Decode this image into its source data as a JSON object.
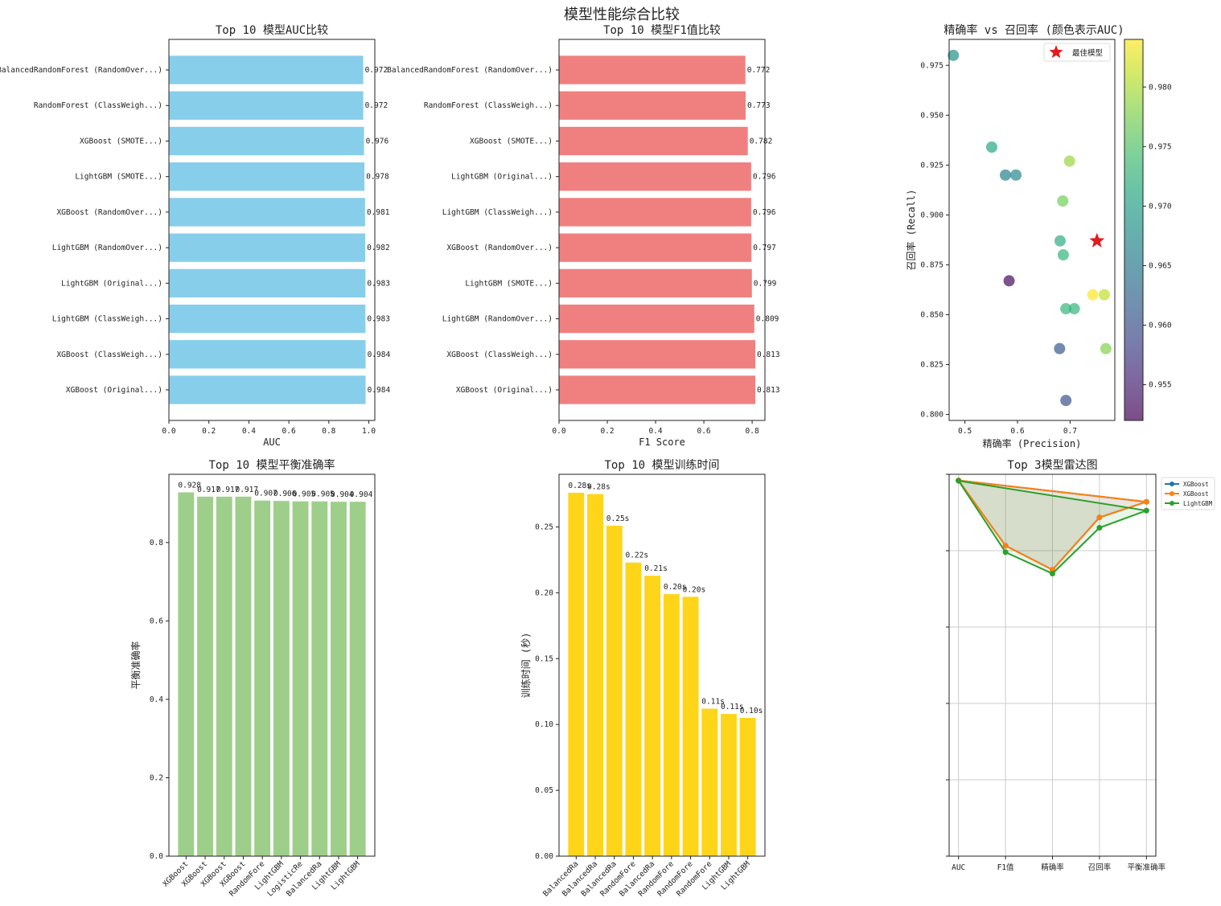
{
  "figure_title": "模型性能综合比较",
  "chart_data": [
    {
      "type": "bar",
      "orientation": "horizontal",
      "title": "Top 10 模型AUC比较",
      "xlabel": "AUC",
      "xlim": [
        0,
        1.03
      ],
      "xticks": [
        "0.0",
        "0.2",
        "0.4",
        "0.6",
        "0.8",
        "1.0"
      ],
      "color": "#87ceeb",
      "categories": [
        "BalancedRandomForest (RandomOver...)",
        "RandomForest (ClassWeigh...)",
        "XGBoost (SMOTE...)",
        "LightGBM (SMOTE...)",
        "XGBoost (RandomOver...)",
        "LightGBM (RandomOver...)",
        "LightGBM (Original...)",
        "LightGBM (ClassWeigh...)",
        "XGBoost (ClassWeigh...)",
        "XGBoost (Original...)"
      ],
      "values": [
        0.972,
        0.972,
        0.976,
        0.978,
        0.981,
        0.982,
        0.983,
        0.983,
        0.984,
        0.984
      ],
      "labels": [
        "0.972",
        "0.972",
        "0.976",
        "0.978",
        "0.981",
        "0.982",
        "0.983",
        "0.983",
        "0.984",
        "0.984"
      ]
    },
    {
      "type": "bar",
      "orientation": "horizontal",
      "title": "Top 10 模型F1值比较",
      "xlabel": "F1 Score",
      "xlim": [
        0,
        0.853
      ],
      "xticks": [
        "0.0",
        "0.2",
        "0.4",
        "0.6",
        "0.8"
      ],
      "color": "#f08080",
      "categories": [
        "BalancedRandomForest (RandomOver...)",
        "RandomForest (ClassWeigh...)",
        "XGBoost (SMOTE...)",
        "LightGBM (Original...)",
        "LightGBM (ClassWeigh...)",
        "XGBoost (RandomOver...)",
        "LightGBM (SMOTE...)",
        "LightGBM (RandomOver...)",
        "XGBoost (ClassWeigh...)",
        "XGBoost (Original...)"
      ],
      "values": [
        0.772,
        0.773,
        0.782,
        0.796,
        0.796,
        0.797,
        0.799,
        0.809,
        0.813,
        0.813
      ],
      "labels": [
        "0.772",
        "0.773",
        "0.782",
        "0.796",
        "0.796",
        "0.797",
        "0.799",
        "0.809",
        "0.813",
        "0.813"
      ]
    },
    {
      "type": "scatter",
      "title": "精确率 vs 召回率 (颜色表示AUC)",
      "xlabel": "精确率 (Precision)",
      "ylabel": "召回率 (Recall)",
      "xlim": [
        0.47,
        0.785
      ],
      "ylim": [
        0.797,
        0.988
      ],
      "xticks": [
        "0.5",
        "0.6",
        "0.7"
      ],
      "yticks": [
        "0.800",
        "0.825",
        "0.850",
        "0.875",
        "0.900",
        "0.925",
        "0.950",
        "0.975"
      ],
      "colormap": "viridis",
      "colorbar": {
        "range": [
          0.952,
          0.984
        ],
        "ticks": [
          "0.955",
          "0.960",
          "0.965",
          "0.970",
          "0.975",
          "0.980"
        ]
      },
      "points": [
        {
          "precision": 0.478,
          "recall": 0.98,
          "auc": 0.968
        },
        {
          "precision": 0.551,
          "recall": 0.934,
          "auc": 0.971
        },
        {
          "precision": 0.577,
          "recall": 0.92,
          "auc": 0.966
        },
        {
          "precision": 0.597,
          "recall": 0.92,
          "auc": 0.967
        },
        {
          "precision": 0.699,
          "recall": 0.927,
          "auc": 0.979
        },
        {
          "precision": 0.686,
          "recall": 0.907,
          "auc": 0.977
        },
        {
          "precision": 0.681,
          "recall": 0.887,
          "auc": 0.972
        },
        {
          "precision": 0.687,
          "recall": 0.88,
          "auc": 0.973
        },
        {
          "precision": 0.584,
          "recall": 0.867,
          "auc": 0.953
        },
        {
          "precision": 0.743,
          "recall": 0.86,
          "auc": 0.984
        },
        {
          "precision": 0.765,
          "recall": 0.86,
          "auc": 0.981
        },
        {
          "precision": 0.692,
          "recall": 0.853,
          "auc": 0.973
        },
        {
          "precision": 0.708,
          "recall": 0.853,
          "auc": 0.973
        },
        {
          "precision": 0.68,
          "recall": 0.833,
          "auc": 0.961
        },
        {
          "precision": 0.768,
          "recall": 0.833,
          "auc": 0.978
        },
        {
          "precision": 0.692,
          "recall": 0.807,
          "auc": 0.96
        }
      ],
      "best": {
        "precision": 0.751,
        "recall": 0.887,
        "label": "最佳模型",
        "color": "#e41a1c"
      },
      "legend_placement": "upper-right"
    },
    {
      "type": "bar",
      "title": "Top 10 模型平衡准确率",
      "ylabel": "平衡准确率",
      "ylim": [
        0,
        0.974
      ],
      "yticks": [
        "0.0",
        "0.2",
        "0.4",
        "0.6",
        "0.8"
      ],
      "color": "#9ecf8a",
      "categories": [
        "XGBoost",
        "XGBoost",
        "XGBoost",
        "XGBoost",
        "RandomFore",
        "LightGBM",
        "LogisticRe",
        "BalancedRa",
        "LightGBM",
        "LightGBM"
      ],
      "values": [
        0.928,
        0.917,
        0.917,
        0.917,
        0.907,
        0.906,
        0.905,
        0.905,
        0.904,
        0.904
      ],
      "labels": [
        "0.928",
        "0.917",
        "0.917",
        "0.917",
        "0.907",
        "0.906",
        "0.905",
        "0.905",
        "0.904",
        "0.904"
      ]
    },
    {
      "type": "bar",
      "title": "Top 10 模型训练时间",
      "ylabel": "训练时间 (秒)",
      "ylim": [
        0,
        0.29
      ],
      "yticks": [
        "0.00",
        "0.05",
        "0.10",
        "0.15",
        "0.20",
        "0.25"
      ],
      "color": "#ffd51a",
      "categories": [
        "BalancedRa",
        "BalancedRa",
        "BalancedRa",
        "RandomFore",
        "BalancedRa",
        "RandomFore",
        "RandomFore",
        "RandomFore",
        "LightGBM",
        "LightGBM"
      ],
      "values": [
        0.276,
        0.275,
        0.251,
        0.223,
        0.213,
        0.199,
        0.197,
        0.112,
        0.108,
        0.105
      ],
      "labels": [
        "0.28s",
        "0.28s",
        "0.25s",
        "0.22s",
        "0.21s",
        "0.20s",
        "0.20s",
        "0.11s",
        "0.11s",
        "0.10s"
      ]
    },
    {
      "type": "line",
      "title": "Top 3模型雷达图",
      "categories": [
        "AUC",
        "F1值",
        "精确率",
        "召回率",
        "平衡准确率"
      ],
      "ylim": [
        0,
        1
      ],
      "grid": true,
      "legend_placement": "outside-upper-right",
      "series": [
        {
          "name": "XGBoost",
          "color": "#1f77b4",
          "values": [
            0.984,
            0.813,
            0.75,
            0.887,
            0.928
          ]
        },
        {
          "name": "XGBoost",
          "color": "#ff7f0e",
          "values": [
            0.984,
            0.813,
            0.75,
            0.887,
            0.928
          ]
        },
        {
          "name": "LightGBM",
          "color": "#2ca02c",
          "values": [
            0.983,
            0.796,
            0.74,
            0.86,
            0.905
          ]
        }
      ]
    }
  ]
}
